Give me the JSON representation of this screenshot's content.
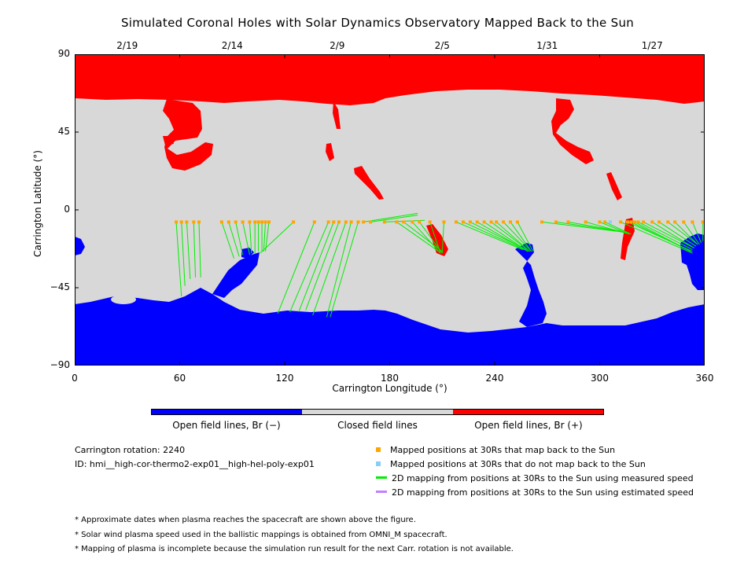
{
  "title": "Simulated Coronal Holes with Solar Dynamics Observatory Mapped Back to the Sun",
  "colors": {
    "open_neg": "#0000ff",
    "closed": "#d8d8d8",
    "open_pos": "#ff0000",
    "mapped": "#ffa500",
    "unmapped": "#87cefa",
    "measured": "#00ee00",
    "estimated": "#c080ff"
  },
  "chart_data": {
    "type": "map",
    "title": "Simulated Coronal Holes with Solar Dynamics Observatory Mapped Back to the Sun",
    "xlabel": "Carrington Longitude (°)",
    "ylabel": "Carrington Latitude (°)",
    "xlim": [
      0,
      360
    ],
    "ylim": [
      -90,
      90
    ],
    "x_ticks": [
      0,
      60,
      120,
      180,
      240,
      300,
      360
    ],
    "y_ticks": [
      90,
      45,
      0,
      -45,
      -90
    ],
    "x_tick_labels": [
      "0",
      "60",
      "120",
      "180",
      "240",
      "300",
      "360"
    ],
    "y_tick_labels": [
      "90",
      "45",
      "0",
      "−45",
      "−90"
    ],
    "top_dates": [
      {
        "label": "2/19",
        "lon": 30
      },
      {
        "label": "2/14",
        "lon": 90
      },
      {
        "label": "2/9",
        "lon": 150
      },
      {
        "label": "2/5",
        "lon": 210
      },
      {
        "label": "1/31",
        "lon": 270
      },
      {
        "label": "1/27",
        "lon": 330
      }
    ],
    "mappings": [
      {
        "lon30": 58,
        "lat30": -7,
        "lonS": 61,
        "latS": -50
      },
      {
        "lon30": 61,
        "lat30": -7,
        "lonS": 63,
        "latS": -44
      },
      {
        "lon30": 64,
        "lat30": -7,
        "lonS": 66,
        "latS": -40
      },
      {
        "lon30": 68,
        "lat30": -7,
        "lonS": 69,
        "latS": -39
      },
      {
        "lon30": 71,
        "lat30": -7,
        "lonS": 72,
        "latS": -39
      },
      {
        "lon30": 84,
        "lat30": -7,
        "lonS": 91,
        "latS": -28
      },
      {
        "lon30": 88,
        "lat30": -7,
        "lonS": 94,
        "latS": -27
      },
      {
        "lon30": 92,
        "lat30": -7,
        "lonS": 96,
        "latS": -26
      },
      {
        "lon30": 96,
        "lat30": -7,
        "lonS": 100,
        "latS": -26
      },
      {
        "lon30": 100,
        "lat30": -7,
        "lonS": 101,
        "latS": -25
      },
      {
        "lon30": 103,
        "lat30": -7,
        "lonS": 103,
        "latS": -25
      },
      {
        "lon30": 105,
        "lat30": -7,
        "lonS": 105,
        "latS": -24
      },
      {
        "lon30": 107,
        "lat30": -7,
        "lonS": 107,
        "latS": -24
      },
      {
        "lon30": 109,
        "lat30": -7,
        "lonS": 108,
        "latS": -24
      },
      {
        "lon30": 111,
        "lat30": -7,
        "lonS": 109,
        "latS": -24
      },
      {
        "lon30": 125,
        "lat30": -7,
        "lonS": 106,
        "latS": -25
      },
      {
        "lon30": 137,
        "lat30": -7,
        "lonS": 116,
        "latS": -60
      },
      {
        "lon30": 145,
        "lat30": -7,
        "lonS": 123,
        "latS": -59
      },
      {
        "lon30": 148,
        "lat30": -7,
        "lonS": 128,
        "latS": -59
      },
      {
        "lon30": 151,
        "lat30": -7,
        "lonS": 132,
        "latS": -58
      },
      {
        "lon30": 155,
        "lat30": -7,
        "lonS": 136,
        "latS": -61
      },
      {
        "lon30": 158,
        "lat30": -7,
        "lonS": 144,
        "latS": -62
      },
      {
        "lon30": 162,
        "lat30": -7,
        "lonS": 146,
        "latS": -62
      },
      {
        "lon30": 165,
        "lat30": -7,
        "lonS": 196,
        "latS": -2
      },
      {
        "lon30": 169,
        "lat30": -7,
        "lonS": 196,
        "latS": -3
      },
      {
        "lon30": 177,
        "lat30": -7,
        "lonS": 200,
        "latS": -6
      },
      {
        "lon30": 184,
        "lat30": -7,
        "lonS": 208,
        "latS": -24
      },
      {
        "lon30": 188,
        "lat30": -7,
        "lonS": 210,
        "latS": -24
      },
      {
        "lon30": 193,
        "lat30": -7,
        "lonS": 209,
        "latS": -25
      },
      {
        "lon30": 197,
        "lat30": -7,
        "lonS": 210,
        "latS": -25
      },
      {
        "lon30": 203,
        "lat30": -7,
        "lonS": 209,
        "latS": -25
      },
      {
        "lon30": 211,
        "lat30": -7,
        "lonS": 210,
        "latS": -25
      },
      {
        "lon30": 218,
        "lat30": -7,
        "lonS": 256,
        "latS": -23
      },
      {
        "lon30": 222,
        "lat30": -7,
        "lonS": 257,
        "latS": -23
      },
      {
        "lon30": 226,
        "lat30": -7,
        "lonS": 258,
        "latS": -23
      },
      {
        "lon30": 230,
        "lat30": -7,
        "lonS": 259,
        "latS": -24
      },
      {
        "lon30": 234,
        "lat30": -7,
        "lonS": 259,
        "latS": -24
      },
      {
        "lon30": 238,
        "lat30": -7,
        "lonS": 260,
        "latS": -24
      },
      {
        "lon30": 241,
        "lat30": -7,
        "lonS": 260,
        "latS": -24
      },
      {
        "lon30": 245,
        "lat30": -7,
        "lonS": 261,
        "latS": -24
      },
      {
        "lon30": 249,
        "lat30": -7,
        "lonS": 261,
        "latS": -24
      },
      {
        "lon30": 253,
        "lat30": -7,
        "lonS": 262,
        "latS": -24
      },
      {
        "lon30": 267,
        "lat30": -7,
        "lonS": 315,
        "latS": -13
      },
      {
        "lon30": 275,
        "lat30": -7,
        "lonS": 316,
        "latS": -13
      },
      {
        "lon30": 282,
        "lat30": -7,
        "lonS": 316,
        "latS": -13
      },
      {
        "lon30": 292,
        "lat30": -7,
        "lonS": 317,
        "latS": -14
      },
      {
        "lon30": 300,
        "lat30": -7,
        "lonS": 317,
        "latS": -14
      },
      {
        "lon30": 303,
        "lat30": -7,
        "lonS": 318,
        "latS": -14
      },
      {
        "lon30": 312,
        "lat30": -7,
        "lonS": 353,
        "latS": -25
      },
      {
        "lon30": 316,
        "lat30": -7,
        "lonS": 353,
        "latS": -24
      },
      {
        "lon30": 318,
        "lat30": -7,
        "lonS": 352,
        "latS": -24
      },
      {
        "lon30": 320,
        "lat30": -7,
        "lonS": 352,
        "latS": -24
      },
      {
        "lon30": 322,
        "lat30": -7,
        "lonS": 353,
        "latS": -23
      },
      {
        "lon30": 325,
        "lat30": -7,
        "lonS": 354,
        "latS": -22
      },
      {
        "lon30": 330,
        "lat30": -7,
        "lonS": 354,
        "latS": -22
      },
      {
        "lon30": 334,
        "lat30": -7,
        "lonS": 355,
        "latS": -21
      },
      {
        "lon30": 339,
        "lat30": -7,
        "lonS": 356,
        "latS": -20
      },
      {
        "lon30": 343,
        "lat30": -7,
        "lonS": 356,
        "latS": -20
      },
      {
        "lon30": 348,
        "lat30": -7,
        "lonS": 357,
        "latS": -20
      },
      {
        "lon30": 353,
        "lat30": -7,
        "lonS": 358,
        "latS": -19
      },
      {
        "lon30": 359,
        "lat30": -7,
        "lonS": 359,
        "latS": -18
      }
    ],
    "unmapped_points": [
      {
        "lon30": 306,
        "lat30": -7
      }
    ],
    "regions": [
      {
        "name": "Open field lines, Br (−)",
        "color": "blue",
        "area": "south polar coronal hole plus low-latitude extensions near lon 0, 90–110, 255–265, 340–360"
      },
      {
        "name": "Closed field lines",
        "color": "gray",
        "area": "mid-latitude band"
      },
      {
        "name": "Open field lines, Br (+)",
        "color": "red",
        "area": "north polar coronal hole plus extensions near lon 55–75, 145–165, 180–215, 275–320"
      }
    ]
  },
  "colorbar": {
    "labels": [
      "Open field lines, Br (−)",
      "Closed field lines",
      "Open field lines, Br (+)"
    ]
  },
  "info": {
    "rotation": "Carrington rotation: 2240",
    "id": "ID: hmi__high-cor-thermo2-exp01__high-hel-poly-exp01"
  },
  "legend": [
    {
      "label": "Mapped positions at 30Rs that map back to the Sun",
      "kind": "square",
      "color": "#ffa500"
    },
    {
      "label": "Mapped positions at 30Rs that do not map back to the Sun",
      "kind": "square",
      "color": "#87cefa"
    },
    {
      "label": "2D mapping from positions at 30Rs to the Sun using measured speed",
      "kind": "line",
      "color": "#00ee00"
    },
    {
      "label": "2D mapping from positions at 30Rs to the Sun using estimated speed",
      "kind": "line",
      "color": "#c080ff"
    }
  ],
  "notes": [
    "* Approximate dates when plasma reaches the spacecraft are shown above the figure.",
    "* Solar wind plasma speed used in the ballistic mappings is obtained from OMNI_M spacecraft.",
    "* Mapping of plasma is incomplete because the simulation run result for the next Carr. rotation is not available."
  ]
}
